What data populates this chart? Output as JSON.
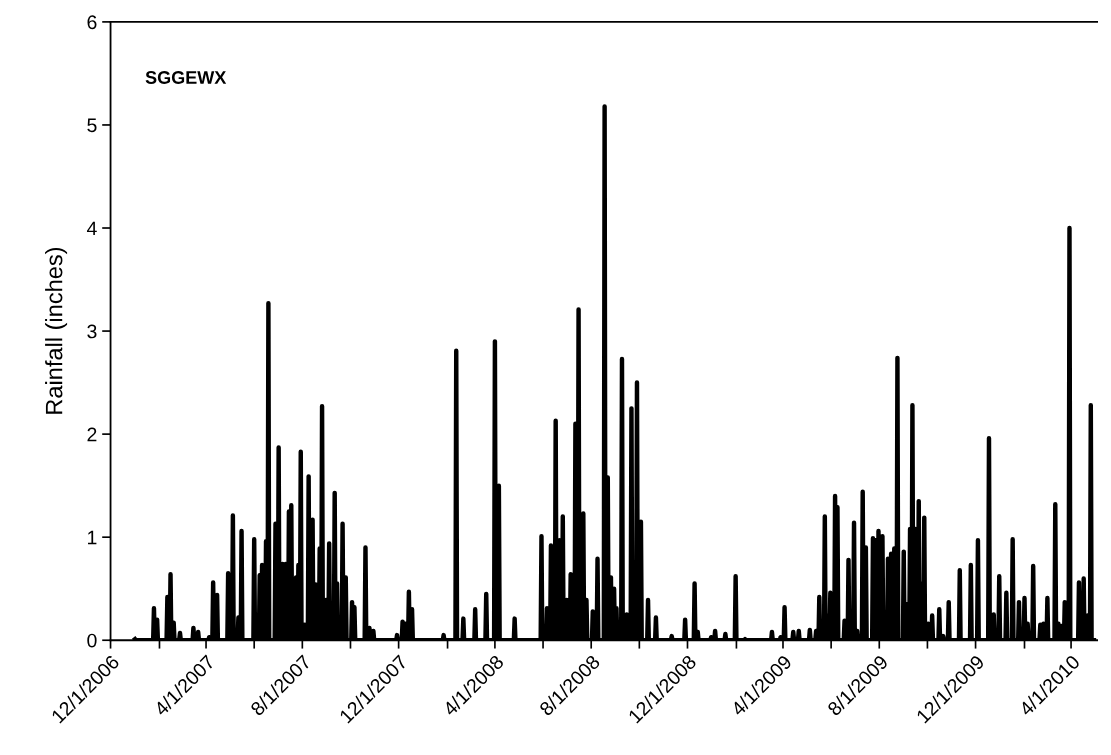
{
  "chart_data": {
    "type": "line",
    "ylabel": "Rainfall (inches)",
    "annotations": [
      "SGGEWX"
    ],
    "xlim": [
      "2006-12-01",
      "2010-05-04"
    ],
    "xticks": [
      {
        "value": "2006-12-01",
        "label": "12/1/2006"
      },
      {
        "value": "2007-02-01",
        "label": null
      },
      {
        "value": "2007-04-01",
        "label": "4/1/2007"
      },
      {
        "value": "2007-06-01",
        "label": null
      },
      {
        "value": "2007-08-01",
        "label": "8/1/2007"
      },
      {
        "value": "2007-10-01",
        "label": null
      },
      {
        "value": "2007-12-01",
        "label": "12/1/2007"
      },
      {
        "value": "2008-02-01",
        "label": null
      },
      {
        "value": "2008-04-01",
        "label": "4/1/2008"
      },
      {
        "value": "2008-06-01",
        "label": null
      },
      {
        "value": "2008-08-01",
        "label": "8/1/2008"
      },
      {
        "value": "2008-10-01",
        "label": null
      },
      {
        "value": "2008-12-01",
        "label": "12/1/2008"
      },
      {
        "value": "2009-02-01",
        "label": null
      },
      {
        "value": "2009-04-01",
        "label": "4/1/2009"
      },
      {
        "value": "2009-06-01",
        "label": null
      },
      {
        "value": "2009-08-01",
        "label": "8/1/2009"
      },
      {
        "value": "2009-10-01",
        "label": null
      },
      {
        "value": "2009-12-01",
        "label": "12/1/2009"
      },
      {
        "value": "2010-02-01",
        "label": null
      },
      {
        "value": "2010-04-01",
        "label": "4/1/2010"
      }
    ],
    "ylim": [
      0,
      6
    ],
    "yticks": [
      0,
      1,
      2,
      3,
      4,
      5,
      6
    ],
    "series": [
      {
        "color": "#000000",
        "x": [
          "2007-01-01",
          "2007-01-02",
          "2007-01-24",
          "2007-01-25",
          "2007-01-26",
          "2007-01-28",
          "2007-01-29",
          "2007-01-30",
          "2007-02-10",
          "2007-02-11",
          "2007-02-12",
          "2007-02-14",
          "2007-02-15",
          "2007-02-16",
          "2007-02-18",
          "2007-02-19",
          "2007-02-20",
          "2007-02-26",
          "2007-02-27",
          "2007-02-28",
          "2007-03-15",
          "2007-03-16",
          "2007-03-17",
          "2007-03-21",
          "2007-03-22",
          "2007-03-23",
          "2007-04-04",
          "2007-04-05",
          "2007-04-06",
          "2007-04-09",
          "2007-04-10",
          "2007-04-11",
          "2007-04-14",
          "2007-04-15",
          "2007-04-16",
          "2007-04-28",
          "2007-04-29",
          "2007-04-30",
          "2007-05-04",
          "2007-05-05",
          "2007-05-06",
          "2007-05-11",
          "2007-05-12",
          "2007-05-13",
          "2007-05-15",
          "2007-05-16",
          "2007-05-17",
          "2007-05-31",
          "2007-06-01",
          "2007-06-02",
          "2007-06-07",
          "2007-06-08",
          "2007-06-09",
          "2007-06-10",
          "2007-06-11",
          "2007-06-12",
          "2007-06-15",
          "2007-06-16",
          "2007-06-17",
          "2007-06-18",
          "2007-06-19",
          "2007-06-20",
          "2007-06-27",
          "2007-06-28",
          "2007-06-29",
          "2007-07-01",
          "2007-07-02",
          "2007-07-03",
          "2007-07-06",
          "2007-07-07",
          "2007-07-08",
          "2007-07-10",
          "2007-07-11",
          "2007-07-12",
          "2007-07-14",
          "2007-07-15",
          "2007-07-16",
          "2007-07-17",
          "2007-07-18",
          "2007-07-19",
          "2007-07-23",
          "2007-07-24",
          "2007-07-25",
          "2007-07-26",
          "2007-07-27",
          "2007-07-28",
          "2007-07-29",
          "2007-07-30",
          "2007-07-31",
          "2007-08-03",
          "2007-08-04",
          "2007-08-05",
          "2007-08-08",
          "2007-08-09",
          "2007-08-10",
          "2007-08-13",
          "2007-08-14",
          "2007-08-15",
          "2007-08-17",
          "2007-08-18",
          "2007-08-19",
          "2007-08-22",
          "2007-08-23",
          "2007-08-24",
          "2007-08-25",
          "2007-08-26",
          "2007-08-27",
          "2007-08-30",
          "2007-08-31",
          "2007-09-01",
          "2007-09-03",
          "2007-09-04",
          "2007-09-05",
          "2007-09-06",
          "2007-09-07",
          "2007-09-08",
          "2007-09-10",
          "2007-09-11",
          "2007-09-12",
          "2007-09-13",
          "2007-09-14",
          "2007-09-15",
          "2007-09-20",
          "2007-09-21",
          "2007-09-22",
          "2007-09-24",
          "2007-09-25",
          "2007-09-26",
          "2007-10-02",
          "2007-10-03",
          "2007-10-04",
          "2007-10-05",
          "2007-10-06",
          "2007-10-07",
          "2007-10-19",
          "2007-10-20",
          "2007-10-21",
          "2007-10-24",
          "2007-10-25",
          "2007-10-26",
          "2007-10-29",
          "2007-10-30",
          "2007-10-31",
          "2007-11-28",
          "2007-11-29",
          "2007-11-30",
          "2007-12-05",
          "2007-12-06",
          "2007-12-07",
          "2007-12-09",
          "2007-12-10",
          "2007-12-11",
          "2007-12-13",
          "2007-12-14",
          "2007-12-15",
          "2007-12-17",
          "2007-12-18",
          "2007-12-19",
          "2008-01-26",
          "2008-01-27",
          "2008-01-28",
          "2008-02-11",
          "2008-02-12",
          "2008-02-13",
          "2008-02-20",
          "2008-02-21",
          "2008-02-22",
          "2008-03-06",
          "2008-03-07",
          "2008-03-08",
          "2008-03-20",
          "2008-03-21",
          "2008-03-22",
          "2008-03-31",
          "2008-04-01",
          "2008-04-02",
          "2008-04-05",
          "2008-04-06",
          "2008-04-07",
          "2008-04-25",
          "2008-04-26",
          "2008-04-27",
          "2008-05-29",
          "2008-05-30",
          "2008-05-31",
          "2008-06-05",
          "2008-06-06",
          "2008-06-07",
          "2008-06-10",
          "2008-06-11",
          "2008-06-12",
          "2008-06-16",
          "2008-06-17",
          "2008-06-18",
          "2008-06-21",
          "2008-06-22",
          "2008-06-23",
          "2008-06-25",
          "2008-06-26",
          "2008-06-27",
          "2008-06-30",
          "2008-07-01",
          "2008-07-02",
          "2008-07-05",
          "2008-07-06",
          "2008-07-07",
          "2008-07-11",
          "2008-07-12",
          "2008-07-13",
          "2008-07-15",
          "2008-07-16",
          "2008-07-17",
          "2008-07-21",
          "2008-07-22",
          "2008-07-23",
          "2008-07-25",
          "2008-07-26",
          "2008-07-27",
          "2008-08-02",
          "2008-08-03",
          "2008-08-04",
          "2008-08-08",
          "2008-08-09",
          "2008-08-10",
          "2008-08-17",
          "2008-08-18",
          "2008-08-19",
          "2008-08-21",
          "2008-08-22",
          "2008-08-23",
          "2008-08-25",
          "2008-08-26",
          "2008-08-27",
          "2008-08-29",
          "2008-08-30",
          "2008-08-31",
          "2008-09-01",
          "2008-09-02",
          "2008-09-03",
          "2008-09-08",
          "2008-09-09",
          "2008-09-10",
          "2008-09-14",
          "2008-09-15",
          "2008-09-16",
          "2008-09-20",
          "2008-09-21",
          "2008-09-22",
          "2008-09-27",
          "2008-09-28",
          "2008-09-29",
          "2008-10-02",
          "2008-10-03",
          "2008-10-04",
          "2008-10-11",
          "2008-10-12",
          "2008-10-13",
          "2008-10-21",
          "2008-10-22",
          "2008-10-23",
          "2008-11-10",
          "2008-11-11",
          "2008-11-12",
          "2008-11-27",
          "2008-11-28",
          "2008-11-29",
          "2008-12-09",
          "2008-12-10",
          "2008-12-11",
          "2008-12-13",
          "2008-12-14",
          "2008-12-15",
          "2008-12-30",
          "2008-12-31",
          "2009-01-01",
          "2009-01-04",
          "2009-01-05",
          "2009-01-06",
          "2009-01-17",
          "2009-01-18",
          "2009-01-19",
          "2009-01-30",
          "2009-01-31",
          "2009-02-01",
          "2009-02-11",
          "2009-02-12",
          "2009-02-13",
          "2009-03-17",
          "2009-03-18",
          "2009-03-19",
          "2009-03-28",
          "2009-03-29",
          "2009-03-30",
          "2009-04-02",
          "2009-04-03",
          "2009-04-04",
          "2009-04-13",
          "2009-04-14",
          "2009-04-15",
          "2009-04-20",
          "2009-04-21",
          "2009-04-22",
          "2009-05-04",
          "2009-05-05",
          "2009-05-06",
          "2009-05-12",
          "2009-05-13",
          "2009-05-14",
          "2009-05-16",
          "2009-05-17",
          "2009-05-18",
          "2009-05-23",
          "2009-05-24",
          "2009-05-25",
          "2009-05-27",
          "2009-05-28",
          "2009-05-29",
          "2009-05-30",
          "2009-05-31",
          "2009-06-01",
          "2009-06-05",
          "2009-06-06",
          "2009-06-07",
          "2009-06-08",
          "2009-06-09",
          "2009-06-10",
          "2009-06-17",
          "2009-06-18",
          "2009-06-19",
          "2009-06-22",
          "2009-06-23",
          "2009-06-24",
          "2009-06-29",
          "2009-06-30",
          "2009-07-01",
          "2009-07-03",
          "2009-07-04",
          "2009-07-05",
          "2009-07-10",
          "2009-07-11",
          "2009-07-12",
          "2009-07-14",
          "2009-07-15",
          "2009-07-16",
          "2009-07-23",
          "2009-07-24",
          "2009-07-25",
          "2009-07-26",
          "2009-07-27",
          "2009-07-28",
          "2009-07-30",
          "2009-07-31",
          "2009-08-01",
          "2009-08-04",
          "2009-08-05",
          "2009-08-06",
          "2009-08-11",
          "2009-08-12",
          "2009-08-13",
          "2009-08-15",
          "2009-08-16",
          "2009-08-17",
          "2009-08-19",
          "2009-08-20",
          "2009-08-21",
          "2009-08-23",
          "2009-08-24",
          "2009-08-25",
          "2009-08-31",
          "2009-09-01",
          "2009-09-02",
          "2009-09-04",
          "2009-09-05",
          "2009-09-06",
          "2009-09-08",
          "2009-09-09",
          "2009-09-10",
          "2009-09-11",
          "2009-09-12",
          "2009-09-13",
          "2009-09-15",
          "2009-09-16",
          "2009-09-17",
          "2009-09-19",
          "2009-09-20",
          "2009-09-21",
          "2009-09-23",
          "2009-09-24",
          "2009-09-25",
          "2009-09-26",
          "2009-09-27",
          "2009-09-28",
          "2009-10-01",
          "2009-10-02",
          "2009-10-03",
          "2009-10-06",
          "2009-10-07",
          "2009-10-08",
          "2009-10-15",
          "2009-10-16",
          "2009-10-17",
          "2009-10-20",
          "2009-10-21",
          "2009-10-22",
          "2009-10-27",
          "2009-10-28",
          "2009-10-29",
          "2009-11-10",
          "2009-11-11",
          "2009-11-12",
          "2009-11-24",
          "2009-11-25",
          "2009-11-26",
          "2009-12-03",
          "2009-12-04",
          "2009-12-05",
          "2009-12-17",
          "2009-12-18",
          "2009-12-19",
          "2009-12-23",
          "2009-12-24",
          "2009-12-25",
          "2009-12-30",
          "2009-12-31",
          "2010-01-01",
          "2010-01-08",
          "2010-01-09",
          "2010-01-10",
          "2010-01-16",
          "2010-01-17",
          "2010-01-18",
          "2010-01-24",
          "2010-01-25",
          "2010-01-26",
          "2010-01-31",
          "2010-02-01",
          "2010-02-02",
          "2010-02-04",
          "2010-02-05",
          "2010-02-06",
          "2010-02-11",
          "2010-02-12",
          "2010-02-13",
          "2010-02-20",
          "2010-02-21",
          "2010-02-22",
          "2010-02-24",
          "2010-02-25",
          "2010-02-26",
          "2010-03-01",
          "2010-03-02",
          "2010-03-03",
          "2010-03-11",
          "2010-03-12",
          "2010-03-13",
          "2010-03-15",
          "2010-03-16",
          "2010-03-17",
          "2010-03-20",
          "2010-03-21",
          "2010-03-22",
          "2010-03-23",
          "2010-03-24",
          "2010-03-25",
          "2010-03-29",
          "2010-03-30",
          "2010-03-31",
          "2010-04-10",
          "2010-04-11",
          "2010-04-12",
          "2010-04-16",
          "2010-04-17",
          "2010-04-18",
          "2010-04-21",
          "2010-04-22",
          "2010-04-23",
          "2010-04-25",
          "2010-04-26",
          "2010-04-27",
          "2010-04-30"
        ],
        "values": [
          0.01,
          0,
          0,
          0.31,
          0,
          0,
          0.2,
          0,
          0,
          0.42,
          0,
          0,
          0.64,
          0,
          0,
          0.17,
          0,
          0,
          0.07,
          0,
          0,
          0.12,
          0,
          0,
          0.08,
          0,
          0,
          0.03,
          0,
          0,
          0.56,
          0,
          0,
          0.44,
          0,
          0,
          0.65,
          0,
          0,
          1.21,
          0,
          0,
          0.22,
          0,
          0,
          1.06,
          0,
          0,
          0.98,
          0,
          0,
          0.63,
          0,
          0,
          0.73,
          0,
          0,
          0.96,
          0,
          0,
          3.27,
          0,
          0,
          1.13,
          0,
          0,
          1.87,
          0,
          0,
          0.74,
          0,
          0,
          0.74,
          0,
          0,
          1.25,
          0,
          0,
          1.31,
          0,
          0,
          0.61,
          0,
          0,
          0.73,
          0,
          0,
          1.83,
          0,
          0,
          0.15,
          0,
          0,
          1.59,
          0,
          0,
          1.17,
          0,
          0,
          0.54,
          0,
          0,
          0.89,
          0,
          0,
          2.27,
          0,
          0,
          0.39,
          0,
          0,
          0.94,
          0,
          0,
          0.36,
          0,
          0,
          1.43,
          0,
          0,
          0.55,
          0,
          0,
          1.13,
          0,
          0,
          0.61,
          0,
          0,
          0.37,
          0,
          0,
          0.32,
          0,
          0,
          0.9,
          0,
          0,
          0.12,
          0,
          0,
          0.09,
          0,
          0,
          0.05,
          0,
          0,
          0.18,
          0,
          0,
          0.16,
          0,
          0,
          0.47,
          0,
          0,
          0.3,
          0,
          0,
          0.05,
          0,
          0,
          2.81,
          0,
          0,
          0.21,
          0,
          0,
          0.3,
          0,
          0,
          0.45,
          0,
          0,
          2.9,
          0,
          0,
          1.5,
          0,
          0,
          0.21,
          0,
          0,
          1.01,
          0,
          0,
          0.31,
          0,
          0,
          0.92,
          0,
          0,
          2.13,
          0,
          0,
          0.97,
          0,
          0,
          1.2,
          0,
          0,
          0.39,
          0,
          0,
          0.64,
          0,
          0,
          2.1,
          0,
          0,
          3.21,
          0,
          0,
          1.23,
          0,
          0,
          0.39,
          0,
          0,
          0.28,
          0,
          0,
          0.79,
          0,
          0,
          5.18,
          0,
          0,
          1.58,
          0,
          0,
          0.61,
          0,
          0,
          0.5,
          0,
          0,
          0.31,
          0,
          0,
          2.73,
          0,
          0,
          0.25,
          0,
          0,
          2.25,
          0,
          0,
          2.5,
          0,
          0,
          1.15,
          0,
          0,
          0.39,
          0,
          0,
          0.22,
          0,
          0,
          0.04,
          0,
          0,
          0.2,
          0,
          0,
          0.55,
          0,
          0,
          0.08,
          0,
          0,
          0.03,
          0,
          0,
          0.09,
          0,
          0,
          0.06,
          0,
          0,
          0.62,
          0,
          0,
          0.01,
          0,
          0,
          0.08,
          0,
          0,
          0.03,
          0,
          0,
          0.32,
          0,
          0,
          0.08,
          0,
          0,
          0.09,
          0,
          0,
          0.1,
          0,
          0,
          0.09,
          0,
          0,
          0.42,
          0,
          0,
          1.2,
          0,
          0,
          0.24,
          0,
          0,
          0.46,
          0,
          0,
          1.4,
          0,
          0,
          1.29,
          0,
          0,
          0.19,
          0,
          0,
          0.78,
          0,
          0,
          1.14,
          0,
          0,
          0.09,
          0,
          0,
          1.44,
          0,
          0,
          0.9,
          0,
          0,
          0.99,
          0,
          0,
          0.97,
          0,
          0,
          1.06,
          0,
          0,
          1.01,
          0,
          0,
          0.79,
          0,
          0,
          0.84,
          0,
          0,
          0.89,
          0,
          0,
          2.74,
          0,
          0,
          0.86,
          0,
          0,
          0.35,
          0,
          0,
          1.08,
          0,
          0,
          2.28,
          0,
          0,
          1.08,
          0,
          0,
          1.35,
          0,
          0,
          0.55,
          0,
          0,
          1.19,
          0,
          0,
          0.16,
          0,
          0,
          0.24,
          0,
          0,
          0.3,
          0,
          0,
          0.04,
          0,
          0,
          0.37,
          0,
          0,
          0.68,
          0,
          0,
          0.73,
          0,
          0,
          0.97,
          0,
          0,
          1.96,
          0,
          0,
          0.25,
          0,
          0,
          0.62,
          0,
          0,
          0.46,
          0,
          0,
          0.98,
          0,
          0,
          0.37,
          0,
          0,
          0.41,
          0,
          0,
          0.16,
          0,
          0,
          0.72,
          0,
          0,
          0.15,
          0,
          0,
          0.16,
          0,
          0,
          0.41,
          0,
          0,
          1.32,
          0,
          0,
          0.16,
          0,
          0,
          0.14,
          0,
          0,
          0.37,
          0,
          0,
          4.0,
          0,
          0,
          0.56,
          0,
          0,
          0.6,
          0,
          0,
          0.24,
          0,
          0,
          2.28,
          0,
          0
        ]
      }
    ]
  }
}
